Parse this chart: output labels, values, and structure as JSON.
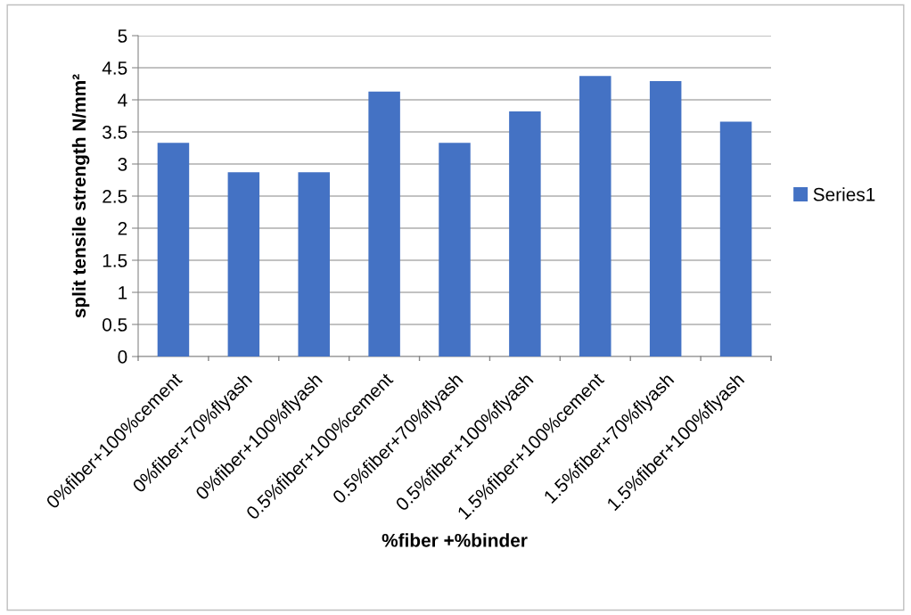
{
  "chart_data": {
    "type": "bar",
    "categories": [
      "0%fiber+100%cement",
      "0%fiber+70%flyash",
      "0%fiber+100%flyash",
      "0.5%fiber+100%cement",
      "0.5%fiber+70%flyash",
      "0.5%fiber+100%flyash",
      "1.5%fiber+100%cement",
      "1.5%fiber+70%flyash",
      "1.5%fiber+100%flyash"
    ],
    "series": [
      {
        "name": "Series1",
        "color": "#4472c4",
        "values": [
          3.33,
          2.87,
          2.87,
          4.13,
          3.33,
          3.82,
          4.37,
          4.29,
          3.66
        ]
      }
    ],
    "xlabel": "%fiber +%binder",
    "ylabel": "split tensile strength N/mm²",
    "ylim": [
      0,
      5
    ],
    "yticks": [
      0,
      0.5,
      1,
      1.5,
      2,
      2.5,
      3,
      3.5,
      4,
      4.5,
      5
    ],
    "grid": "y",
    "legend": "right"
  }
}
